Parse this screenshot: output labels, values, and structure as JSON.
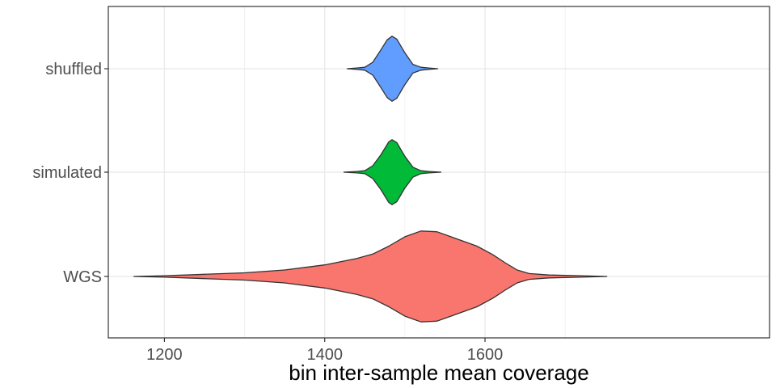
{
  "chart_data": {
    "type": "violin",
    "orientation": "horizontal",
    "title": "",
    "xlabel": "bin inter-sample mean coverage",
    "ylabel": "",
    "xlim": [
      1130,
      1955
    ],
    "x_ticks": [
      1200,
      1400,
      1600
    ],
    "x_minor_ticks": [
      1300,
      1500,
      1700
    ],
    "categories": [
      "WGS",
      "simulated",
      "shuffled"
    ],
    "grid": true,
    "legend": "none",
    "series": [
      {
        "name": "WGS",
        "color": "#F8766D",
        "min": 1162,
        "max": 1752,
        "profile": [
          [
            1162,
            0.0
          ],
          [
            1200,
            0.01
          ],
          [
            1250,
            0.03
          ],
          [
            1300,
            0.05
          ],
          [
            1350,
            0.09
          ],
          [
            1400,
            0.16
          ],
          [
            1440,
            0.25
          ],
          [
            1460,
            0.31
          ],
          [
            1480,
            0.42
          ],
          [
            1500,
            0.55
          ],
          [
            1520,
            0.63
          ],
          [
            1540,
            0.62
          ],
          [
            1555,
            0.56
          ],
          [
            1570,
            0.5
          ],
          [
            1590,
            0.42
          ],
          [
            1610,
            0.3
          ],
          [
            1625,
            0.19
          ],
          [
            1640,
            0.09
          ],
          [
            1655,
            0.04
          ],
          [
            1680,
            0.02
          ],
          [
            1720,
            0.01
          ],
          [
            1752,
            0.0
          ]
        ]
      },
      {
        "name": "simulated",
        "color": "#00BA38",
        "min": 1424,
        "max": 1545,
        "profile": [
          [
            1424,
            0.0
          ],
          [
            1440,
            0.01
          ],
          [
            1450,
            0.02
          ],
          [
            1460,
            0.09
          ],
          [
            1470,
            0.24
          ],
          [
            1480,
            0.42
          ],
          [
            1484,
            0.45
          ],
          [
            1490,
            0.41
          ],
          [
            1500,
            0.22
          ],
          [
            1510,
            0.07
          ],
          [
            1520,
            0.02
          ],
          [
            1530,
            0.01
          ],
          [
            1545,
            0.0
          ]
        ]
      },
      {
        "name": "shuffled",
        "color": "#619CFF",
        "min": 1428,
        "max": 1541,
        "profile": [
          [
            1428,
            0.0
          ],
          [
            1440,
            0.01
          ],
          [
            1450,
            0.02
          ],
          [
            1460,
            0.09
          ],
          [
            1470,
            0.26
          ],
          [
            1478,
            0.4
          ],
          [
            1484,
            0.45
          ],
          [
            1490,
            0.41
          ],
          [
            1500,
            0.22
          ],
          [
            1510,
            0.06
          ],
          [
            1520,
            0.02
          ],
          [
            1530,
            0.01
          ],
          [
            1541,
            0.0
          ]
        ]
      }
    ]
  }
}
